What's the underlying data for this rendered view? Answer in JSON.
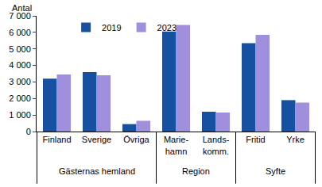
{
  "chart_data": {
    "type": "bar",
    "y_label": "Antal",
    "categories": [
      "Finland",
      "Sverige",
      "Övriga",
      "Marie-\nhamn",
      "Lands-\nkomm.",
      "Fritid",
      "Yrke"
    ],
    "category_groups": [
      {
        "label": "Gästernas hemland",
        "count": 3
      },
      {
        "label": "Region",
        "count": 2
      },
      {
        "label": "Syfte",
        "count": 2
      }
    ],
    "series": [
      {
        "name": "2019",
        "color": "#1650a0",
        "values": [
          3200,
          3600,
          450,
          6050,
          1200,
          5350,
          1900
        ]
      },
      {
        "name": "2023",
        "color": "#a08fdc",
        "values": [
          3450,
          3400,
          650,
          6450,
          1150,
          5850,
          1750
        ]
      }
    ],
    "ylim": [
      0,
      7000
    ],
    "yticks": [
      0,
      {
        "value": 1000,
        "label": "1 000"
      },
      {
        "value": 2000,
        "label": "2 000"
      },
      {
        "value": 3000,
        "label": "3 000"
      },
      {
        "value": 4000,
        "label": "4 000"
      },
      {
        "value": 5000,
        "label": "5 000"
      },
      {
        "value": 6000,
        "label": "6 000"
      },
      {
        "value": 7000,
        "label": "7 000"
      }
    ],
    "grid": false,
    "legend": "top"
  }
}
